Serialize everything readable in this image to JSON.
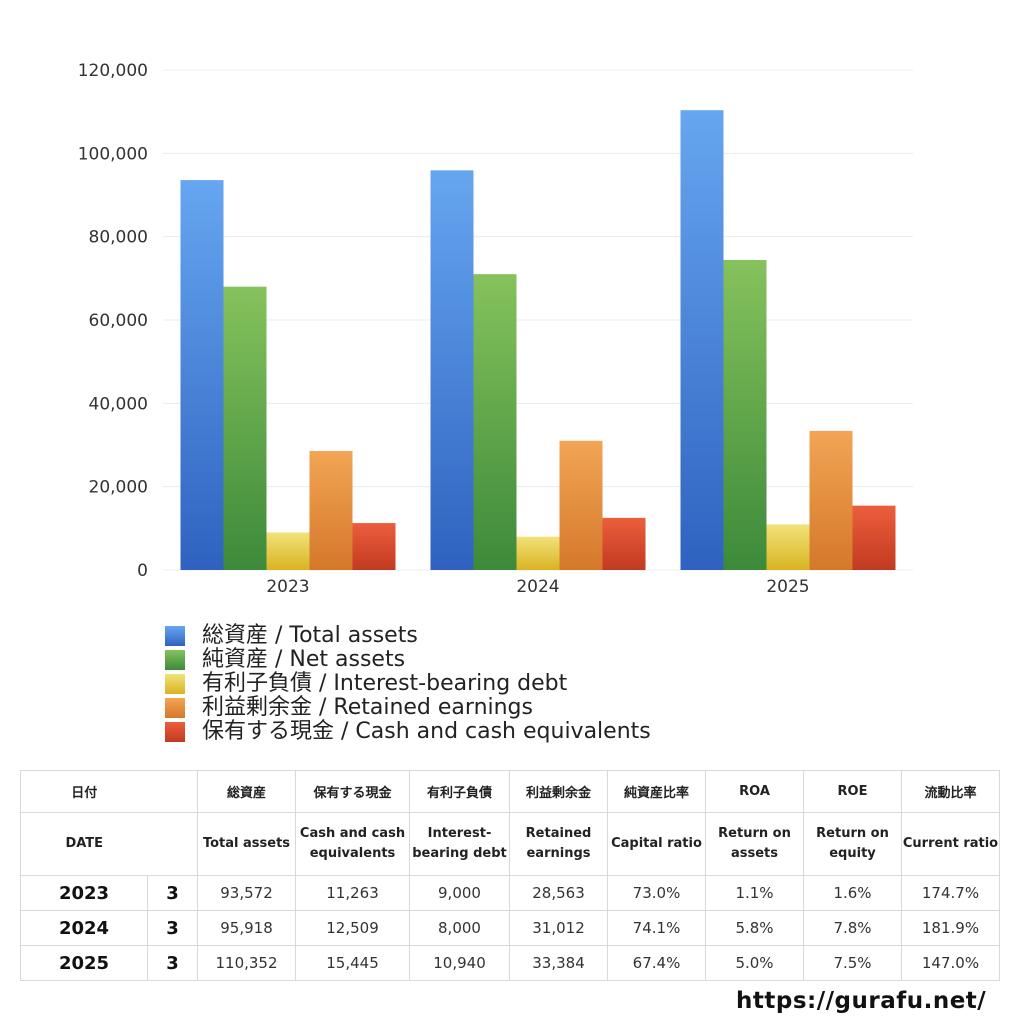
{
  "chart_data": {
    "type": "bar",
    "categories": [
      "2023",
      "2024",
      "2025"
    ],
    "series": [
      {
        "name": "総資産 / Total assets",
        "values": [
          93572,
          95918,
          110352
        ],
        "color_top": "#66a6f0",
        "color_bottom": "#2f62c0"
      },
      {
        "name": "純資産 / Net assets",
        "values": [
          68000,
          71000,
          74400
        ],
        "color_top": "#86c25c",
        "color_bottom": "#3c8a3a"
      },
      {
        "name": "有利子負債 / Interest-bearing debt",
        "values": [
          9000,
          8000,
          10940
        ],
        "color_top": "#f2e27a",
        "color_bottom": "#d9b321"
      },
      {
        "name": "利益剰余金 / Retained earnings",
        "values": [
          28563,
          31012,
          33384
        ],
        "color_top": "#f2a555",
        "color_bottom": "#d5782a"
      },
      {
        "name": "保有する現金 /  Cash and cash equivalents",
        "values": [
          11263,
          12509,
          15445
        ],
        "color_top": "#ec5e3c",
        "color_bottom": "#c23a22"
      }
    ],
    "yticks": [
      "0",
      "20,000",
      "40,000",
      "60,000",
      "80,000",
      "100,000",
      "120,000"
    ],
    "ylim": [
      0,
      120000
    ],
    "grid": true,
    "legend_position": "bottom-left"
  },
  "table": {
    "header_jp": [
      "日付",
      "総資産",
      "保有する現金",
      "有利子負債",
      "利益剰余金",
      "純資産比率",
      "ROA",
      "ROE",
      "流動比率"
    ],
    "header_en": [
      "DATE",
      "Total assets",
      "Cash and cash equivalents",
      "Interest-bearing debt",
      "Retained earnings",
      "Capital ratio",
      "Return on assets",
      "Return on equity",
      "Current ratio"
    ],
    "rows": [
      {
        "year": "2023",
        "month": "3",
        "total_assets": "93,572",
        "cash": "11,263",
        "debt": "9,000",
        "retained": "28,563",
        "capital_ratio": "73.0%",
        "roa": "1.1%",
        "roe": "1.6%",
        "current_ratio": "174.7%"
      },
      {
        "year": "2024",
        "month": "3",
        "total_assets": "95,918",
        "cash": "12,509",
        "debt": "8,000",
        "retained": "31,012",
        "capital_ratio": "74.1%",
        "roa": "5.8%",
        "roe": "7.8%",
        "current_ratio": "181.9%"
      },
      {
        "year": "2025",
        "month": "3",
        "total_assets": "110,352",
        "cash": "15,445",
        "debt": "10,940",
        "retained": "33,384",
        "capital_ratio": "67.4%",
        "roa": "5.0%",
        "roe": "7.5%",
        "current_ratio": "147.0%"
      }
    ]
  },
  "watermark": "https://gurafu.net/"
}
